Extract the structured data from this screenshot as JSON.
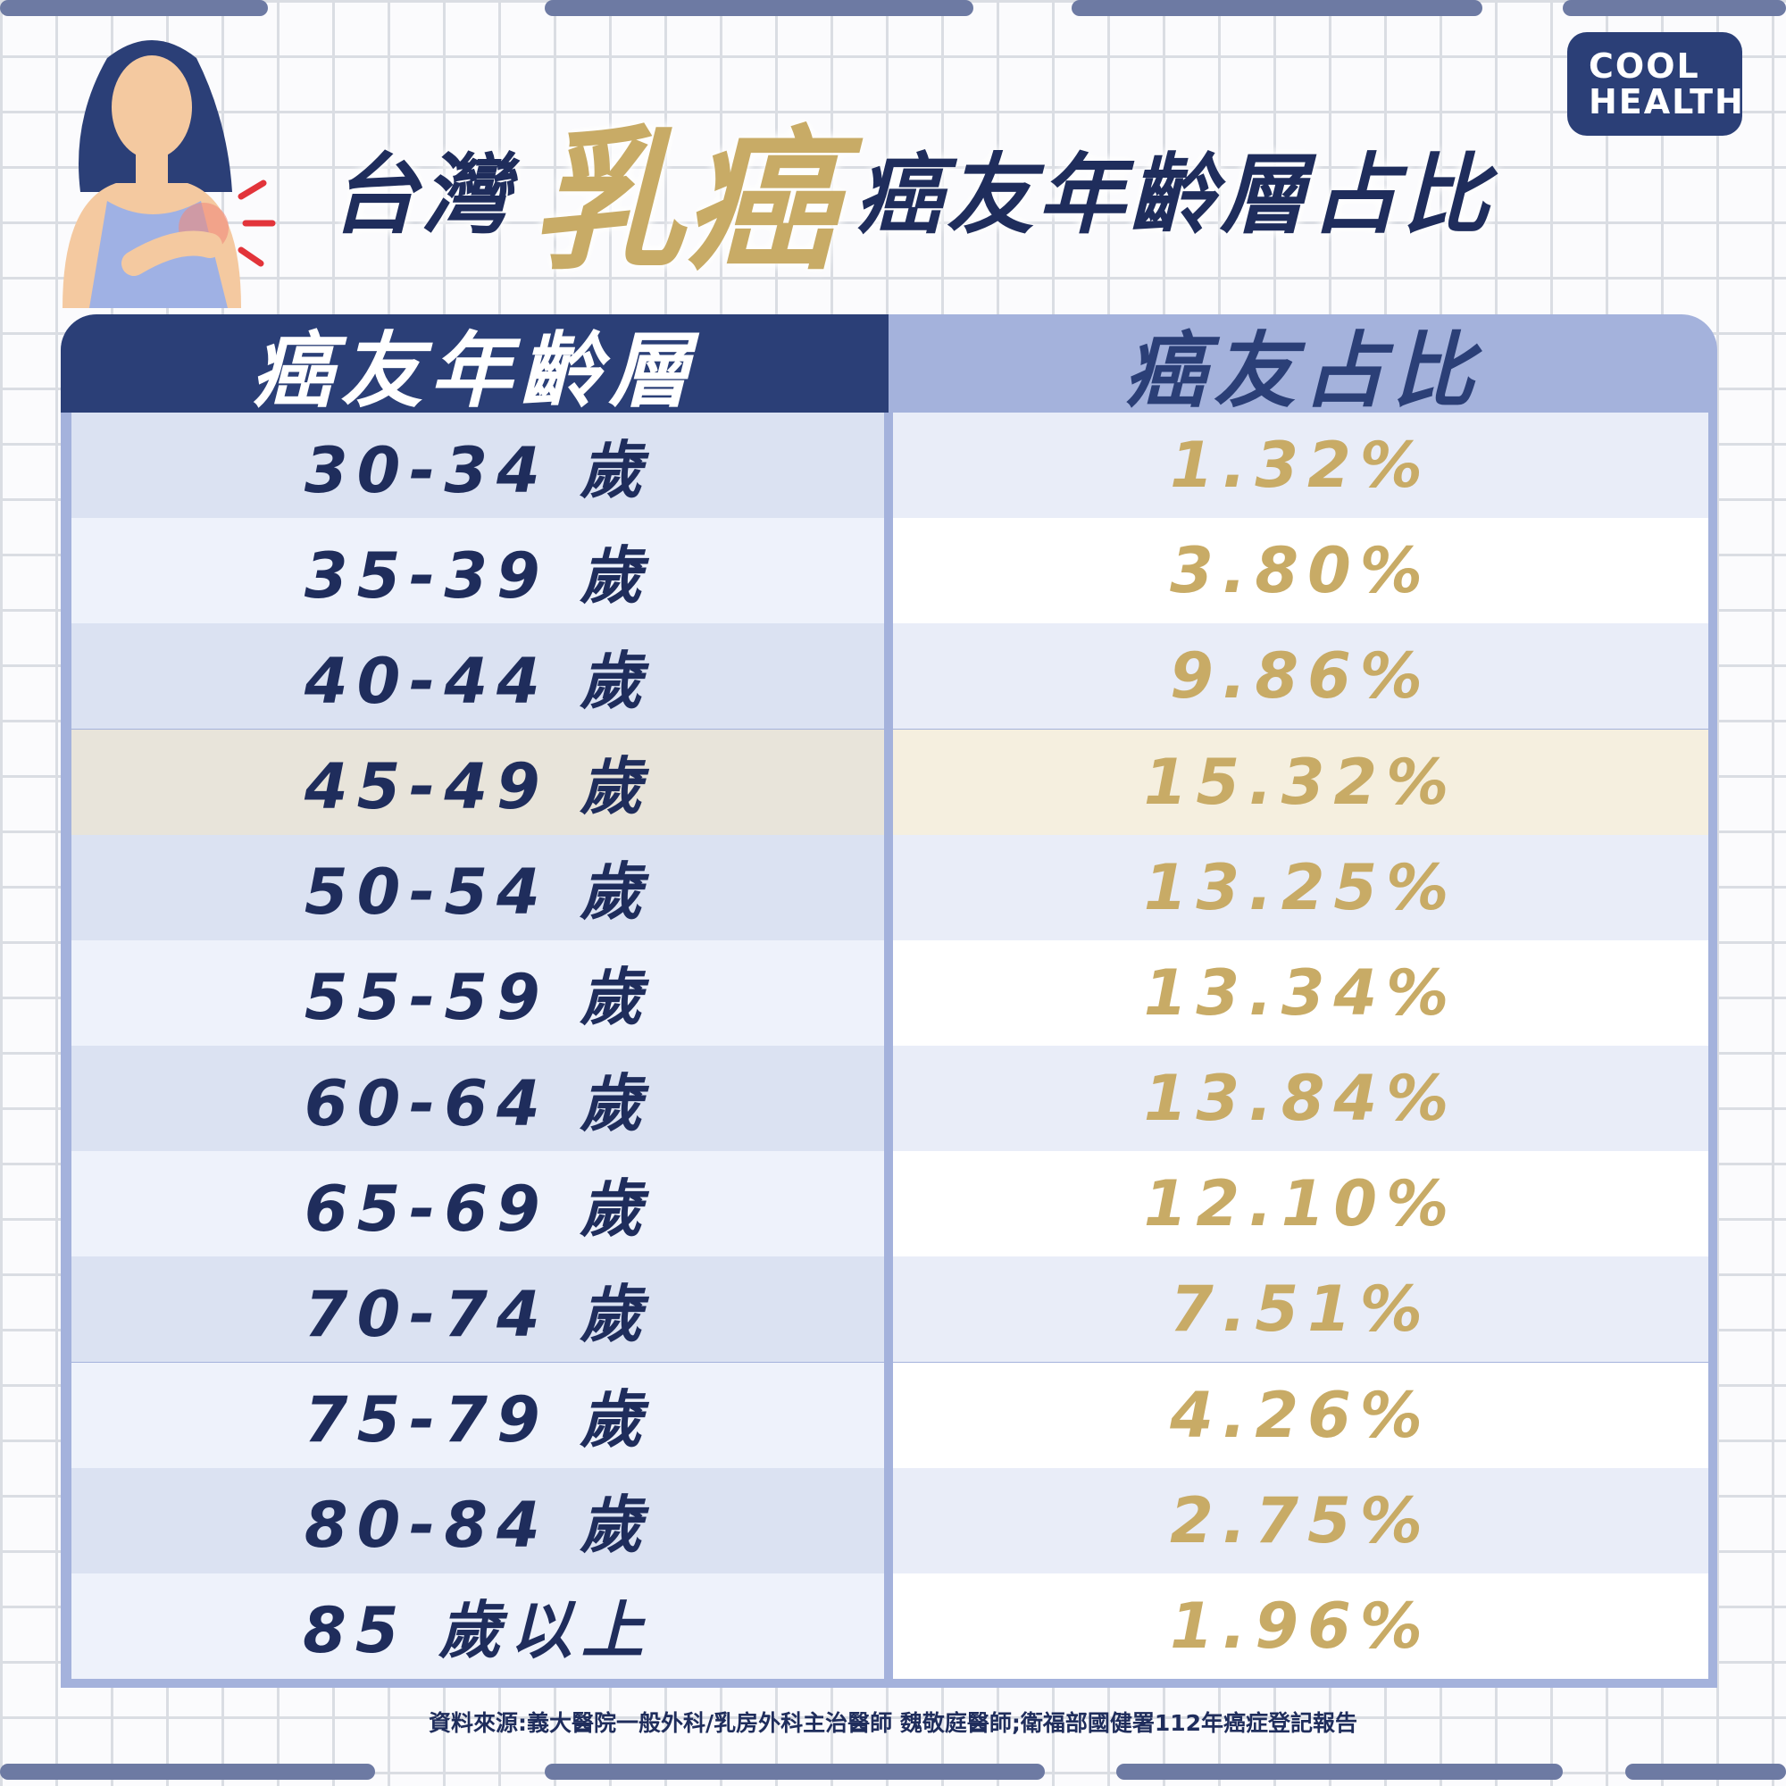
{
  "header": {
    "title_before": "台灣",
    "title_highlight": "乳癌",
    "title_after": "癌友年齡層占比",
    "logo": [
      "COOL",
      "HEALTH"
    ]
  },
  "table": {
    "columns": [
      "癌友年齡層",
      "癌友占比"
    ],
    "highlight_row": 3,
    "rows": [
      [
        "30-34 歲",
        "1.32%"
      ],
      [
        "35-39 歲",
        "3.80%"
      ],
      [
        "40-44 歲",
        "9.86%"
      ],
      [
        "45-49 歲",
        "15.32%"
      ],
      [
        "50-54 歲",
        "13.25%"
      ],
      [
        "55-59 歲",
        "13.34%"
      ],
      [
        "60-64 歲",
        "13.84%"
      ],
      [
        "65-69 歲",
        "12.10%"
      ],
      [
        "70-74 歲",
        "7.51%"
      ],
      [
        "75-79 歲",
        "4.26%"
      ],
      [
        "80-84 歲",
        "2.75%"
      ],
      [
        "85 歲以上",
        "1.96%"
      ]
    ]
  },
  "footer": {
    "source": "資料來源:義大醫院一般外科/乳房外科主治醫師 魏敬庭醫師;衛福部國健署112年癌症登記報告"
  }
}
